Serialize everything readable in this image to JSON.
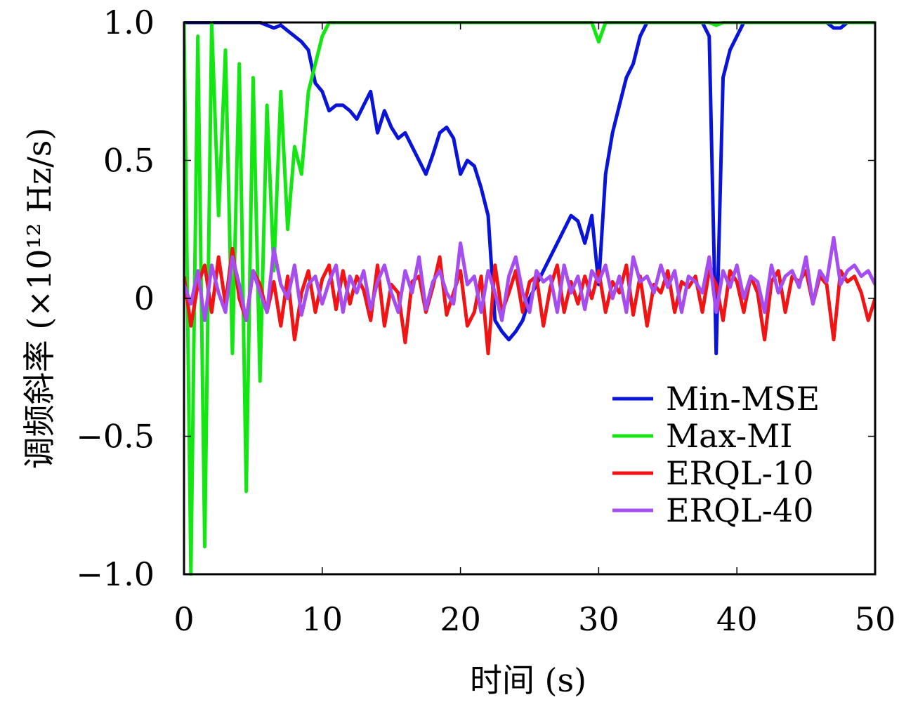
{
  "chart_data": {
    "type": "line",
    "title": "",
    "xlabel": "时间 (s)",
    "ylabel": "调频斜率 (×10¹² Hz/s)",
    "xlim": [
      0,
      50
    ],
    "ylim": [
      -1.0,
      1.0
    ],
    "x_ticks": [
      0,
      10,
      20,
      30,
      40,
      50
    ],
    "x_tick_labels": [
      "0",
      "10",
      "20",
      "30",
      "40",
      "50"
    ],
    "y_ticks": [
      -1.0,
      -0.5,
      0,
      0.5,
      1.0
    ],
    "y_tick_labels": [
      "−1.0",
      "−0.5",
      "0",
      "0.5",
      "1.0"
    ],
    "grid": false,
    "legend_position": "lower-right",
    "x": [
      0,
      0.5,
      1,
      1.5,
      2,
      2.5,
      3,
      3.5,
      4,
      4.5,
      5,
      5.5,
      6,
      6.5,
      7,
      7.5,
      8,
      8.5,
      9,
      9.5,
      10,
      10.5,
      11,
      11.5,
      12,
      12.5,
      13,
      13.5,
      14,
      14.5,
      15,
      15.5,
      16,
      16.5,
      17,
      17.5,
      18,
      18.5,
      19,
      19.5,
      20,
      20.5,
      21,
      21.5,
      22,
      22.5,
      23,
      23.5,
      24,
      24.5,
      25,
      25.5,
      26,
      26.5,
      27,
      27.5,
      28,
      28.5,
      29,
      29.5,
      30,
      30.5,
      31,
      31.5,
      32,
      32.5,
      33,
      33.5,
      34,
      34.5,
      35,
      35.5,
      36,
      36.5,
      37,
      37.5,
      38,
      38.5,
      39,
      39.5,
      40,
      40.5,
      41,
      41.5,
      42,
      42.5,
      43,
      43.5,
      44,
      44.5,
      45,
      45.5,
      46,
      46.5,
      47,
      47.5,
      48,
      48.5,
      49,
      49.5,
      50
    ],
    "series": [
      {
        "name": "Min-MSE",
        "color": "#0a14d8",
        "values": [
          1.0,
          1.0,
          1.0,
          1.0,
          1.0,
          1.0,
          1.0,
          1.0,
          1.0,
          1.0,
          1.0,
          1.0,
          0.99,
          0.98,
          0.99,
          0.97,
          0.95,
          0.93,
          0.9,
          0.78,
          0.75,
          0.68,
          0.7,
          0.7,
          0.68,
          0.65,
          0.7,
          0.75,
          0.6,
          0.68,
          0.62,
          0.58,
          0.6,
          0.55,
          0.5,
          0.45,
          0.52,
          0.6,
          0.62,
          0.58,
          0.45,
          0.5,
          0.48,
          0.4,
          0.3,
          -0.08,
          -0.12,
          -0.15,
          -0.12,
          -0.08,
          0.0,
          0.05,
          0.1,
          0.15,
          0.2,
          0.25,
          0.3,
          0.28,
          0.2,
          0.3,
          0.05,
          0.45,
          0.6,
          0.7,
          0.8,
          0.85,
          0.95,
          1.0,
          1.0,
          1.0,
          1.0,
          1.0,
          1.0,
          1.0,
          1.0,
          1.0,
          0.95,
          -0.2,
          0.8,
          0.9,
          0.95,
          1.0,
          1.0,
          1.0,
          1.0,
          1.0,
          1.0,
          1.0,
          1.0,
          1.0,
          1.0,
          1.0,
          1.0,
          1.0,
          0.98,
          0.98,
          1.0,
          1.0,
          1.0,
          1.0,
          1.0
        ]
      },
      {
        "name": "Max-MI",
        "color": "#14e614",
        "values": [
          1.0,
          -1.0,
          0.95,
          -0.9,
          1.0,
          0.3,
          0.9,
          -0.2,
          0.85,
          -0.7,
          0.8,
          -0.3,
          0.7,
          0.1,
          0.75,
          0.25,
          0.55,
          0.45,
          0.75,
          0.85,
          0.95,
          1.0,
          1.0,
          1.0,
          1.0,
          1.0,
          1.0,
          1.0,
          1.0,
          1.0,
          1.0,
          1.0,
          1.0,
          1.0,
          1.0,
          1.0,
          1.0,
          1.0,
          1.0,
          1.0,
          1.0,
          1.0,
          1.0,
          1.0,
          1.0,
          1.0,
          1.0,
          1.0,
          1.0,
          1.0,
          1.0,
          1.0,
          1.0,
          1.0,
          1.0,
          1.0,
          1.0,
          1.0,
          1.0,
          1.0,
          0.93,
          1.0,
          1.0,
          1.0,
          1.0,
          1.0,
          1.0,
          1.0,
          1.0,
          1.0,
          1.0,
          1.0,
          1.0,
          1.0,
          1.0,
          1.0,
          1.0,
          0.99,
          1.0,
          1.0,
          1.0,
          1.0,
          1.0,
          1.0,
          1.0,
          1.0,
          1.0,
          1.0,
          1.0,
          1.0,
          1.0,
          1.0,
          1.0,
          1.0,
          1.0,
          1.0,
          1.0,
          1.0,
          1.0,
          1.0,
          1.0
        ]
      },
      {
        "name": "ERQL-10",
        "color": "#f01414",
        "values": [
          0.08,
          -0.1,
          0.05,
          0.12,
          -0.05,
          0.15,
          -0.02,
          0.18,
          0.0,
          -0.08,
          0.1,
          0.05,
          -0.05,
          0.06,
          -0.1,
          0.08,
          -0.15,
          0.02,
          0.1,
          -0.05,
          0.07,
          0.12,
          -0.04,
          0.1,
          -0.02,
          0.08,
          0.03,
          -0.08,
          0.12,
          -0.1,
          0.05,
          0.02,
          -0.16,
          0.06,
          0.08,
          -0.05,
          0.04,
          0.15,
          -0.06,
          0.02,
          0.1,
          -0.1,
          -0.05,
          0.08,
          -0.2,
          0.12,
          -0.05,
          0.02,
          0.1,
          -0.05,
          0.06,
          0.08,
          -0.1,
          0.04,
          0.12,
          -0.05,
          0.06,
          -0.02,
          0.08,
          0.0,
          0.1,
          -0.05,
          0.06,
          0.02,
          0.12,
          -0.06,
          0.08,
          -0.1,
          0.05,
          0.02,
          0.1,
          -0.05,
          0.06,
          0.04,
          0.08,
          -0.05,
          0.1,
          0.05,
          -0.08,
          0.1,
          0.06,
          -0.05,
          0.08,
          0.02,
          -0.15,
          0.06,
          0.1,
          -0.05,
          0.08,
          0.06,
          0.1,
          -0.02,
          0.08,
          0.05,
          -0.15,
          0.1,
          0.06,
          0.08,
          0.02,
          -0.08,
          0.0
        ]
      },
      {
        "name": "ERQL-40",
        "color": "#a64df0",
        "values": [
          0.05,
          -0.02,
          0.1,
          -0.08,
          0.12,
          0.02,
          -0.05,
          0.15,
          0.05,
          -0.08,
          0.1,
          0.02,
          -0.05,
          0.18,
          0.05,
          0.0,
          0.12,
          -0.06,
          0.05,
          0.08,
          -0.02,
          0.06,
          0.12,
          -0.05,
          0.08,
          0.02,
          0.1,
          -0.04,
          0.06,
          0.12,
          0.02,
          -0.05,
          0.1,
          0.02,
          0.15,
          -0.04,
          0.06,
          0.1,
          0.02,
          -0.02,
          0.2,
          0.05,
          0.08,
          -0.05,
          0.1,
          0.02,
          -0.08,
          0.08,
          0.15,
          0.02,
          -0.05,
          0.1,
          0.06,
          0.08,
          -0.05,
          0.12,
          0.02,
          0.08,
          -0.04,
          0.1,
          0.06,
          0.12,
          0.0,
          0.08,
          -0.05,
          0.15,
          0.06,
          0.08,
          0.02,
          0.12,
          0.04,
          0.1,
          -0.05,
          0.08,
          0.06,
          0.02,
          0.15,
          -0.05,
          0.1,
          0.04,
          0.12,
          0.0,
          0.08,
          0.06,
          -0.05,
          0.12,
          0.02,
          0.08,
          0.1,
          0.04,
          0.15,
          -0.02,
          0.1,
          0.06,
          0.22,
          0.05,
          0.1,
          0.12,
          0.08,
          0.1,
          0.05
        ]
      }
    ]
  }
}
